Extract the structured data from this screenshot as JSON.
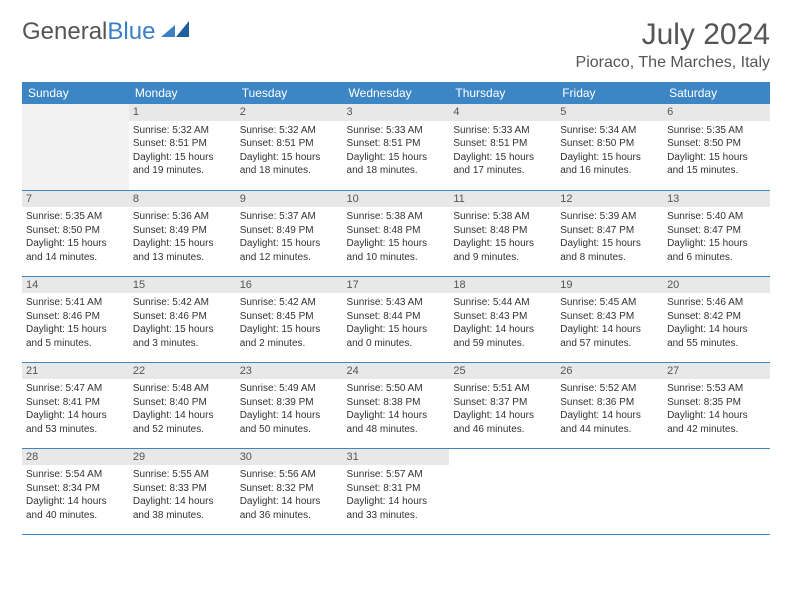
{
  "logo": {
    "text1": "General",
    "text2": "Blue"
  },
  "title": "July 2024",
  "location": "Pioraco, The Marches, Italy",
  "colors": {
    "header_bg": "#3d86c6",
    "header_text": "#ffffff",
    "daynum_bg": "#e8e8e8",
    "border": "#3d86c6",
    "text": "#333333",
    "logo_gray": "#555555",
    "logo_blue": "#3b7fc4",
    "page_bg": "#ffffff"
  },
  "typography": {
    "title_fontsize": 30,
    "location_fontsize": 16,
    "header_fontsize": 12,
    "daynum_fontsize": 11,
    "cell_fontsize": 10,
    "font_family": "Arial"
  },
  "layout": {
    "columns": 7,
    "rows": 5,
    "start_offset": 1
  },
  "weekdays": [
    "Sunday",
    "Monday",
    "Tuesday",
    "Wednesday",
    "Thursday",
    "Friday",
    "Saturday"
  ],
  "days": [
    {
      "n": 1,
      "sr": "5:32 AM",
      "ss": "8:51 PM",
      "dl": "15 hours and 19 minutes."
    },
    {
      "n": 2,
      "sr": "5:32 AM",
      "ss": "8:51 PM",
      "dl": "15 hours and 18 minutes."
    },
    {
      "n": 3,
      "sr": "5:33 AM",
      "ss": "8:51 PM",
      "dl": "15 hours and 18 minutes."
    },
    {
      "n": 4,
      "sr": "5:33 AM",
      "ss": "8:51 PM",
      "dl": "15 hours and 17 minutes."
    },
    {
      "n": 5,
      "sr": "5:34 AM",
      "ss": "8:50 PM",
      "dl": "15 hours and 16 minutes."
    },
    {
      "n": 6,
      "sr": "5:35 AM",
      "ss": "8:50 PM",
      "dl": "15 hours and 15 minutes."
    },
    {
      "n": 7,
      "sr": "5:35 AM",
      "ss": "8:50 PM",
      "dl": "15 hours and 14 minutes."
    },
    {
      "n": 8,
      "sr": "5:36 AM",
      "ss": "8:49 PM",
      "dl": "15 hours and 13 minutes."
    },
    {
      "n": 9,
      "sr": "5:37 AM",
      "ss": "8:49 PM",
      "dl": "15 hours and 12 minutes."
    },
    {
      "n": 10,
      "sr": "5:38 AM",
      "ss": "8:48 PM",
      "dl": "15 hours and 10 minutes."
    },
    {
      "n": 11,
      "sr": "5:38 AM",
      "ss": "8:48 PM",
      "dl": "15 hours and 9 minutes."
    },
    {
      "n": 12,
      "sr": "5:39 AM",
      "ss": "8:47 PM",
      "dl": "15 hours and 8 minutes."
    },
    {
      "n": 13,
      "sr": "5:40 AM",
      "ss": "8:47 PM",
      "dl": "15 hours and 6 minutes."
    },
    {
      "n": 14,
      "sr": "5:41 AM",
      "ss": "8:46 PM",
      "dl": "15 hours and 5 minutes."
    },
    {
      "n": 15,
      "sr": "5:42 AM",
      "ss": "8:46 PM",
      "dl": "15 hours and 3 minutes."
    },
    {
      "n": 16,
      "sr": "5:42 AM",
      "ss": "8:45 PM",
      "dl": "15 hours and 2 minutes."
    },
    {
      "n": 17,
      "sr": "5:43 AM",
      "ss": "8:44 PM",
      "dl": "15 hours and 0 minutes."
    },
    {
      "n": 18,
      "sr": "5:44 AM",
      "ss": "8:43 PM",
      "dl": "14 hours and 59 minutes."
    },
    {
      "n": 19,
      "sr": "5:45 AM",
      "ss": "8:43 PM",
      "dl": "14 hours and 57 minutes."
    },
    {
      "n": 20,
      "sr": "5:46 AM",
      "ss": "8:42 PM",
      "dl": "14 hours and 55 minutes."
    },
    {
      "n": 21,
      "sr": "5:47 AM",
      "ss": "8:41 PM",
      "dl": "14 hours and 53 minutes."
    },
    {
      "n": 22,
      "sr": "5:48 AM",
      "ss": "8:40 PM",
      "dl": "14 hours and 52 minutes."
    },
    {
      "n": 23,
      "sr": "5:49 AM",
      "ss": "8:39 PM",
      "dl": "14 hours and 50 minutes."
    },
    {
      "n": 24,
      "sr": "5:50 AM",
      "ss": "8:38 PM",
      "dl": "14 hours and 48 minutes."
    },
    {
      "n": 25,
      "sr": "5:51 AM",
      "ss": "8:37 PM",
      "dl": "14 hours and 46 minutes."
    },
    {
      "n": 26,
      "sr": "5:52 AM",
      "ss": "8:36 PM",
      "dl": "14 hours and 44 minutes."
    },
    {
      "n": 27,
      "sr": "5:53 AM",
      "ss": "8:35 PM",
      "dl": "14 hours and 42 minutes."
    },
    {
      "n": 28,
      "sr": "5:54 AM",
      "ss": "8:34 PM",
      "dl": "14 hours and 40 minutes."
    },
    {
      "n": 29,
      "sr": "5:55 AM",
      "ss": "8:33 PM",
      "dl": "14 hours and 38 minutes."
    },
    {
      "n": 30,
      "sr": "5:56 AM",
      "ss": "8:32 PM",
      "dl": "14 hours and 36 minutes."
    },
    {
      "n": 31,
      "sr": "5:57 AM",
      "ss": "8:31 PM",
      "dl": "14 hours and 33 minutes."
    }
  ],
  "labels": {
    "sunrise": "Sunrise:",
    "sunset": "Sunset:",
    "daylight": "Daylight:"
  }
}
